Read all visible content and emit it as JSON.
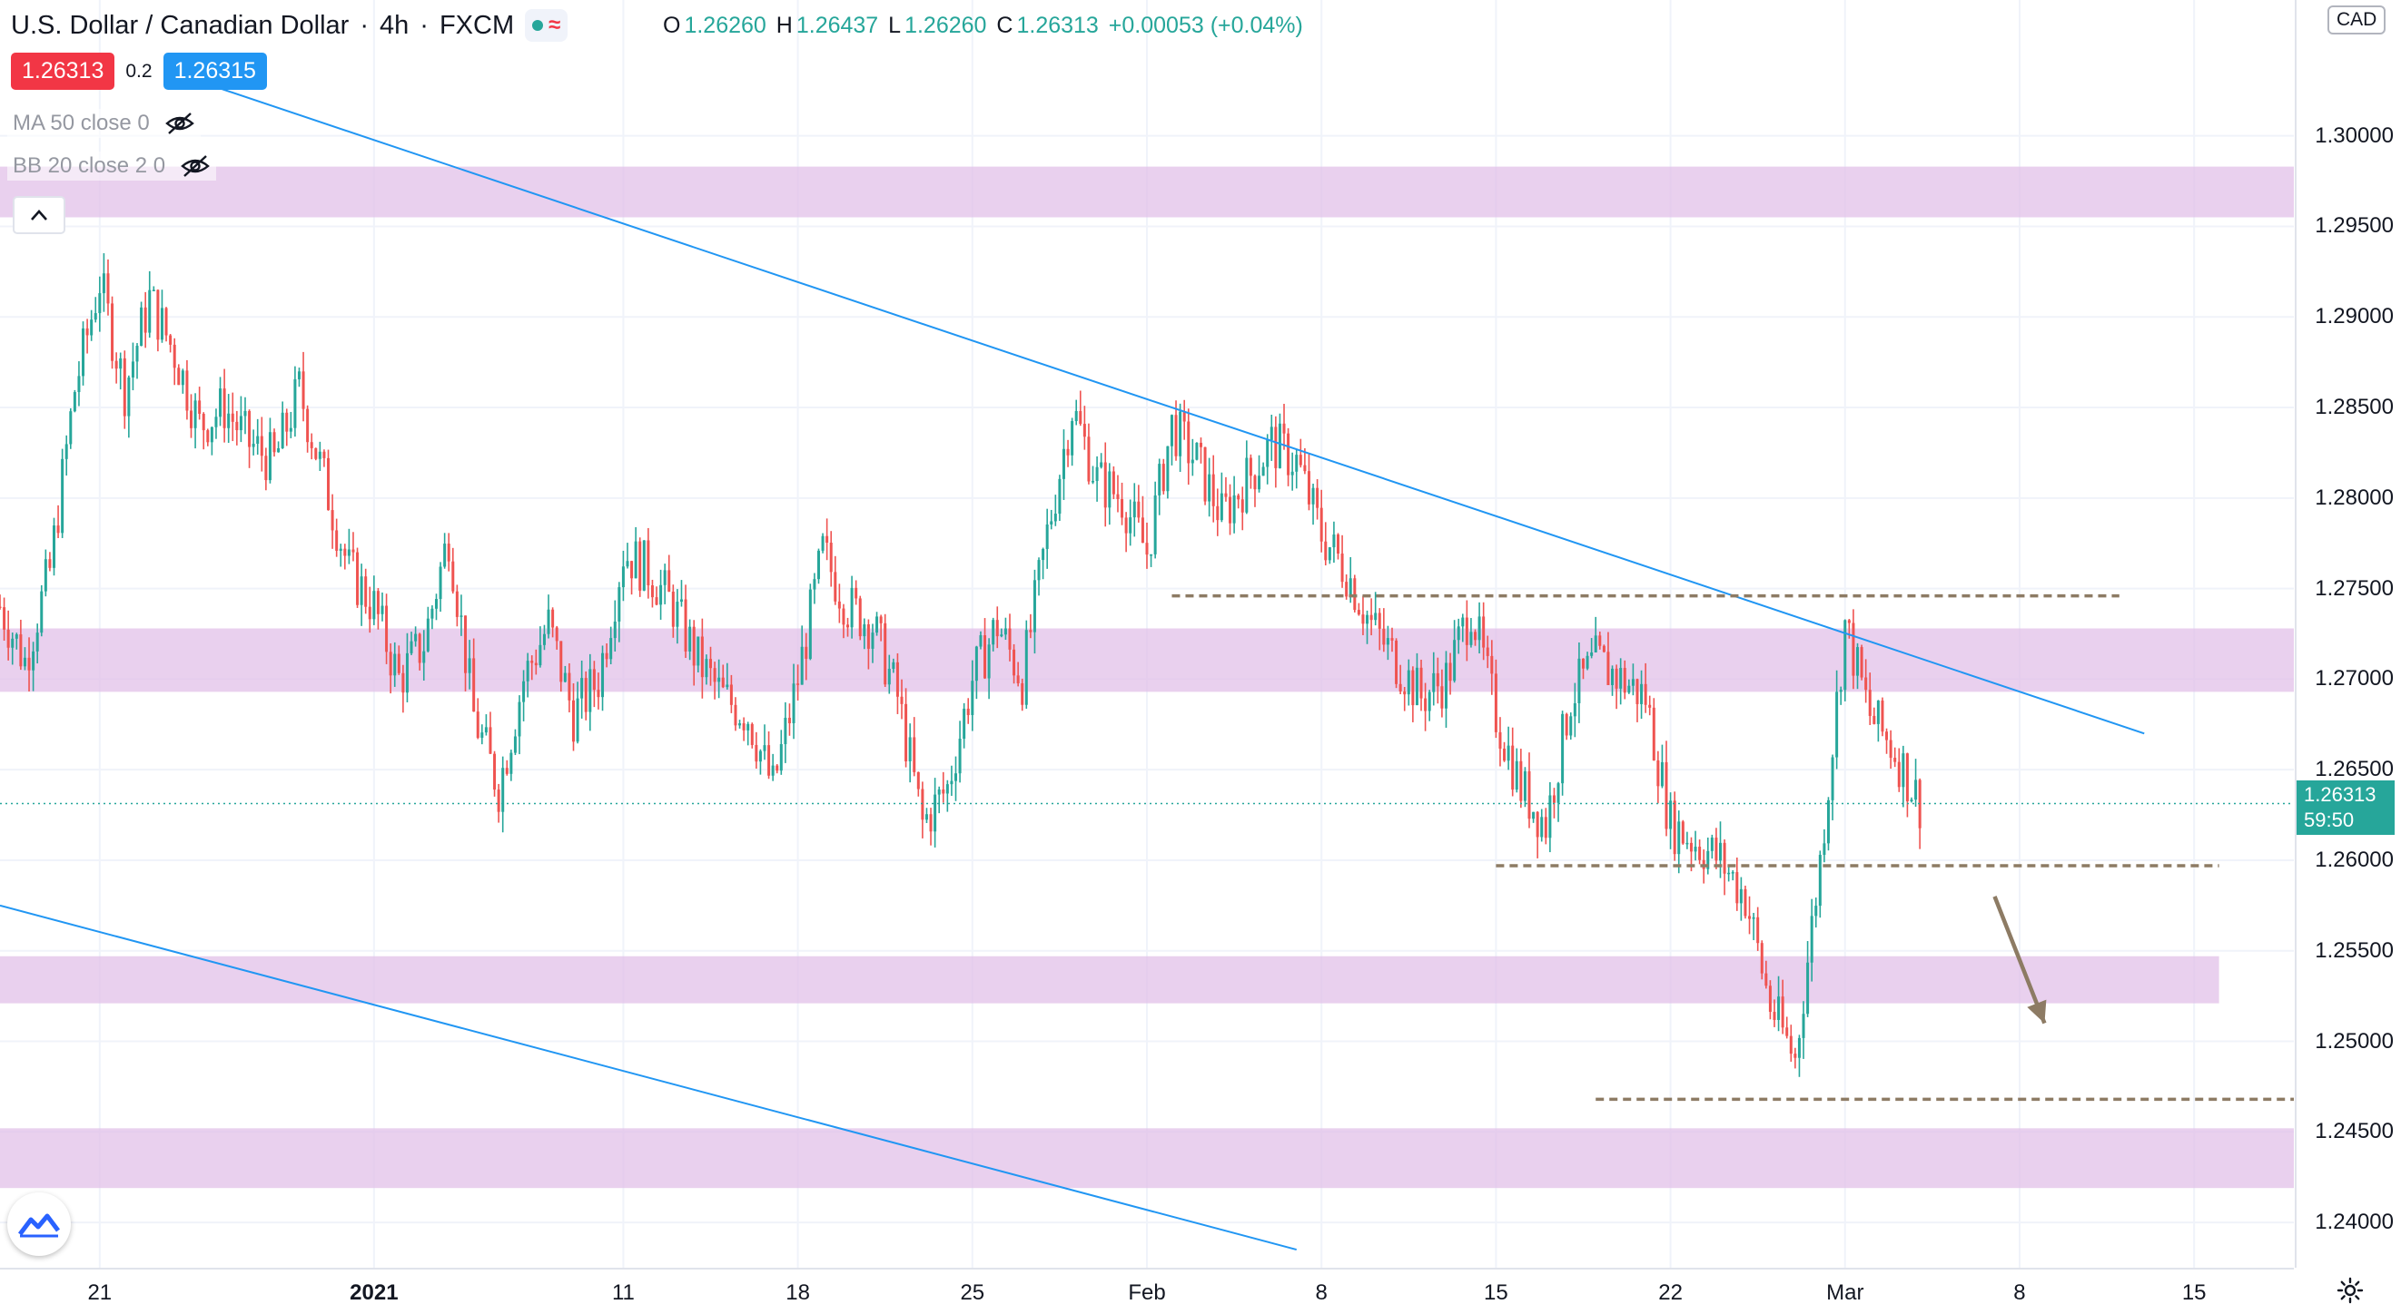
{
  "header": {
    "symbol": "U.S. Dollar / Canadian Dollar",
    "interval": "4h",
    "exchange": "FXCM",
    "ohlc": {
      "o_label": "O",
      "o": "1.26260",
      "h_label": "H",
      "h": "1.26437",
      "l_label": "L",
      "l": "1.26260",
      "c_label": "C",
      "c": "1.26313",
      "change": "+0.00053 (+0.04%)"
    }
  },
  "quote": {
    "sell": "1.26313",
    "spread": "0.2",
    "buy": "1.26315"
  },
  "indicators": [
    {
      "label": "MA 50 close 0",
      "icon": "eye-crossed-icon"
    },
    {
      "label": "BB 20 close 2 0",
      "icon": "eye-crossed-icon"
    }
  ],
  "price_axis": {
    "currency": "CAD",
    "current_price": "1.26313",
    "countdown": "59:50",
    "current_price_color": "#26a69a"
  },
  "colors": {
    "up": "#26a69a",
    "down": "#ef5350",
    "zone": "#e1bee7",
    "trendline": "#2196f3",
    "level": "#8d7b64"
  },
  "chart_data": {
    "type": "candlestick",
    "title": "",
    "xlabel": "",
    "ylabel": "",
    "ylim": [
      1.2375,
      1.3075
    ],
    "y_ticks": [
      "1.24000",
      "1.24500",
      "1.25000",
      "1.25500",
      "1.26000",
      "1.26500",
      "1.27000",
      "1.27500",
      "1.28000",
      "1.28500",
      "1.29000",
      "1.29500",
      "1.30000"
    ],
    "x_ticks": [
      {
        "date": "2020-12-21",
        "label": "21"
      },
      {
        "date": "2021-01-01",
        "label": "2021",
        "bold": true
      },
      {
        "date": "2021-01-11",
        "label": "11"
      },
      {
        "date": "2021-01-18",
        "label": "18"
      },
      {
        "date": "2021-01-25",
        "label": "25"
      },
      {
        "date": "2021-02-01",
        "label": "Feb"
      },
      {
        "date": "2021-02-08",
        "label": "8"
      },
      {
        "date": "2021-02-15",
        "label": "15"
      },
      {
        "date": "2021-02-22",
        "label": "22"
      },
      {
        "date": "2021-03-01",
        "label": "Mar"
      },
      {
        "date": "2021-03-08",
        "label": "8"
      },
      {
        "date": "2021-03-15",
        "label": "15"
      }
    ],
    "x_range": [
      "2020-12-17",
      "2021-03-19"
    ],
    "grid": true,
    "legend": "none",
    "price_path": [
      [
        "2020-12-17",
        1.274
      ],
      [
        "2020-12-18",
        1.271
      ],
      [
        "2020-12-19",
        1.276
      ],
      [
        "2020-12-20",
        1.286
      ],
      [
        "2020-12-21",
        1.292
      ],
      [
        "2020-12-22",
        1.286
      ],
      [
        "2020-12-23",
        1.291
      ],
      [
        "2020-12-24",
        1.288
      ],
      [
        "2020-12-25",
        1.284
      ],
      [
        "2020-12-26",
        1.285
      ],
      [
        "2020-12-27",
        1.283
      ],
      [
        "2020-12-28",
        1.282
      ],
      [
        "2020-12-29",
        1.286
      ],
      [
        "2020-12-30",
        1.281
      ],
      [
        "2020-12-31",
        1.276
      ],
      [
        "2021-01-01",
        1.274
      ],
      [
        "2021-01-02",
        1.27
      ],
      [
        "2021-01-03",
        1.272
      ],
      [
        "2021-01-04",
        1.278
      ],
      [
        "2021-01-05",
        1.268
      ],
      [
        "2021-01-06",
        1.264
      ],
      [
        "2021-01-07",
        1.27
      ],
      [
        "2021-01-08",
        1.273
      ],
      [
        "2021-01-09",
        1.268
      ],
      [
        "2021-01-10",
        1.27
      ],
      [
        "2021-01-11",
        1.277
      ],
      [
        "2021-01-12",
        1.276
      ],
      [
        "2021-01-13",
        1.274
      ],
      [
        "2021-01-14",
        1.271
      ],
      [
        "2021-01-15",
        1.269
      ],
      [
        "2021-01-16",
        1.268
      ],
      [
        "2021-01-17",
        1.264
      ],
      [
        "2021-01-18",
        1.27
      ],
      [
        "2021-01-19",
        1.277
      ],
      [
        "2021-01-20",
        1.274
      ],
      [
        "2021-01-21",
        1.273
      ],
      [
        "2021-01-22",
        1.269
      ],
      [
        "2021-01-23",
        1.262
      ],
      [
        "2021-01-24",
        1.264
      ],
      [
        "2021-01-25",
        1.27
      ],
      [
        "2021-01-26",
        1.273
      ],
      [
        "2021-01-27",
        1.27
      ],
      [
        "2021-01-28",
        1.278
      ],
      [
        "2021-01-29",
        1.285
      ],
      [
        "2021-01-30",
        1.281
      ],
      [
        "2021-01-31",
        1.28
      ],
      [
        "2021-02-01",
        1.277
      ],
      [
        "2021-02-02",
        1.284
      ],
      [
        "2021-02-03",
        1.282
      ],
      [
        "2021-02-04",
        1.279
      ],
      [
        "2021-02-05",
        1.281
      ],
      [
        "2021-02-06",
        1.283
      ],
      [
        "2021-02-07",
        1.282
      ],
      [
        "2021-02-08",
        1.278
      ],
      [
        "2021-02-09",
        1.276
      ],
      [
        "2021-02-10",
        1.273
      ],
      [
        "2021-02-11",
        1.271
      ],
      [
        "2021-02-12",
        1.269
      ],
      [
        "2021-02-13",
        1.27
      ],
      [
        "2021-02-14",
        1.274
      ],
      [
        "2021-02-15",
        1.268
      ],
      [
        "2021-02-16",
        1.264
      ],
      [
        "2021-02-17",
        1.262
      ],
      [
        "2021-02-18",
        1.269
      ],
      [
        "2021-02-19",
        1.271
      ],
      [
        "2021-02-20",
        1.27
      ],
      [
        "2021-02-21",
        1.269
      ],
      [
        "2021-02-22",
        1.262
      ],
      [
        "2021-02-23",
        1.261
      ],
      [
        "2021-02-24",
        1.26
      ],
      [
        "2021-02-25",
        1.258
      ],
      [
        "2021-02-26",
        1.252
      ],
      [
        "2021-02-27",
        1.249
      ],
      [
        "2021-02-28",
        1.26
      ],
      [
        "2021-03-01",
        1.273
      ],
      [
        "2021-03-02",
        1.268
      ],
      [
        "2021-03-03",
        1.266
      ],
      [
        "2021-03-04",
        1.26313
      ]
    ],
    "zones": [
      [
        1.2955,
        1.2983
      ],
      [
        1.2693,
        1.2728
      ],
      [
        1.2521,
        1.2547
      ],
      [
        1.2419,
        1.2452
      ]
    ],
    "trendlines": [
      {
        "from": [
          "2020-12-25",
          1.303
        ],
        "to": [
          "2021-03-13",
          1.267
        ]
      },
      {
        "from": [
          "2020-12-17",
          1.2575
        ],
        "to": [
          "2021-02-07",
          1.2385
        ]
      }
    ],
    "levels": [
      {
        "from": "2021-02-02",
        "to": "2021-03-12",
        "y": 1.2746
      },
      {
        "from": "2021-02-15",
        "to": "2021-03-16",
        "y": 1.2597
      },
      {
        "from": "2021-02-19",
        "to": "2021-03-19",
        "y": 1.2468
      }
    ],
    "arrow": {
      "from": [
        "2021-03-07",
        1.258
      ],
      "to": [
        "2021-03-09",
        1.251
      ]
    },
    "current_price_line": 1.26313
  }
}
